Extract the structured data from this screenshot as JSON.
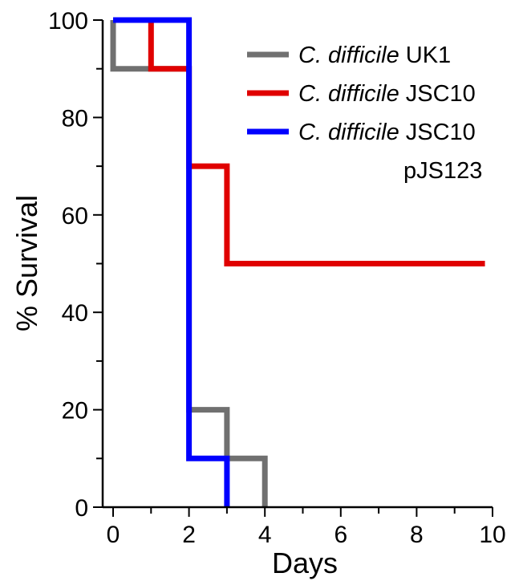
{
  "chart_data": {
    "type": "line",
    "title": "",
    "xlabel": "Days",
    "ylabel": "% Survival",
    "xlim": [
      -0.25,
      10
    ],
    "ylim": [
      0,
      100
    ],
    "x_ticks": [
      0,
      2,
      4,
      6,
      8,
      10
    ],
    "x_minor_ticks": [
      1,
      3,
      5,
      7,
      9
    ],
    "y_ticks": [
      0,
      20,
      40,
      60,
      80,
      100
    ],
    "y_minor_ticks": [
      10,
      30,
      50,
      70,
      90
    ],
    "step": "post",
    "legend_position": "top-right",
    "series": [
      {
        "name_italic": "C. difficile",
        "name_rest": " UK1",
        "name_extra": "",
        "color": "#707070",
        "x": [
          0,
          0,
          2,
          3,
          4
        ],
        "y": [
          100,
          90,
          20,
          10,
          0
        ]
      },
      {
        "name_italic": "C. difficile",
        "name_rest": " JSC10",
        "name_extra": "",
        "color": "#e00000",
        "x": [
          0,
          1,
          2,
          3,
          9.8
        ],
        "y": [
          100,
          90,
          70,
          50,
          50
        ]
      },
      {
        "name_italic": "C. difficile",
        "name_rest": " JSC10",
        "name_extra": "pJS123",
        "color": "#0000ff",
        "x": [
          0,
          2,
          3
        ],
        "y": [
          100,
          10,
          0
        ]
      }
    ]
  }
}
